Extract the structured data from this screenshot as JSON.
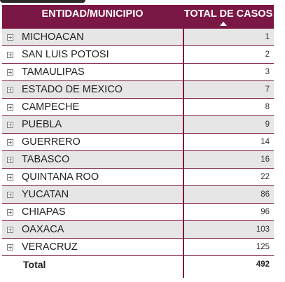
{
  "table": {
    "columns": {
      "entity": "ENTIDAD/MUNICIPIO",
      "total": "TOTAL DE CASOS"
    },
    "rows": [
      {
        "name": "MICHOACAN",
        "value": "1"
      },
      {
        "name": "SAN LUIS POTOSI",
        "value": "2"
      },
      {
        "name": "TAMAULIPAS",
        "value": "3"
      },
      {
        "name": "ESTADO DE MEXICO",
        "value": "7"
      },
      {
        "name": "CAMPECHE",
        "value": "8"
      },
      {
        "name": "PUEBLA",
        "value": "9"
      },
      {
        "name": "GUERRERO",
        "value": "14"
      },
      {
        "name": "TABASCO",
        "value": "16"
      },
      {
        "name": "QUINTANA ROO",
        "value": "22"
      },
      {
        "name": "YUCATAN",
        "value": "86"
      },
      {
        "name": "CHIAPAS",
        "value": "96"
      },
      {
        "name": "OAXACA",
        "value": "103"
      },
      {
        "name": "VERACRUZ",
        "value": "125"
      }
    ],
    "total": {
      "label": "Total",
      "value": "492"
    },
    "sort": {
      "column": "total",
      "direction": "ascending"
    },
    "colors": {
      "header": "#7b1744",
      "row_alt": "#e6e6e6"
    }
  }
}
